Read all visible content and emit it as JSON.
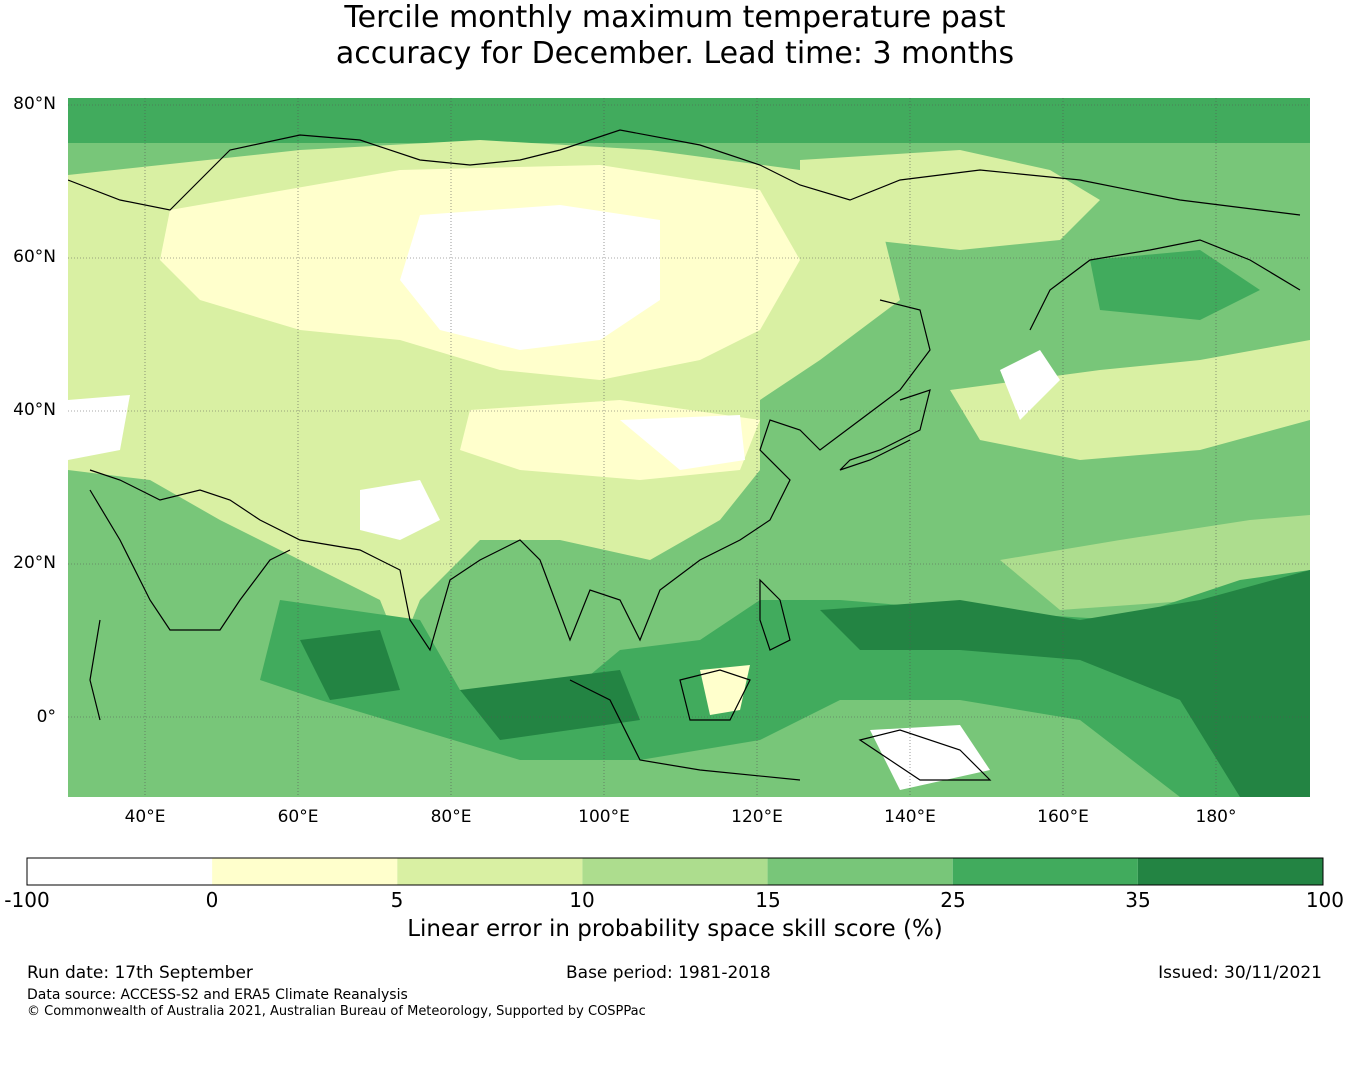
{
  "title": {
    "line1": "Tercile monthly maximum temperature past",
    "line2": "accuracy for December. Lead time: 3 months"
  },
  "map": {
    "lat_labels": [
      "80°N",
      "60°N",
      "40°N",
      "20°N",
      "0°"
    ],
    "lon_labels": [
      "40°E",
      "60°E",
      "80°E",
      "100°E",
      "120°E",
      "140°E",
      "160°E",
      "180°"
    ],
    "region": "Asia and western Pacific"
  },
  "colorbar": {
    "ticks": [
      "-100",
      "0",
      "5",
      "10",
      "15",
      "25",
      "35",
      "100"
    ],
    "colors": [
      "#ffffff",
      "#ffffcc",
      "#d9f0a3",
      "#addd8e",
      "#78c679",
      "#41ab5d",
      "#238443"
    ],
    "label": "Linear error in probability space skill score (%)"
  },
  "footer": {
    "run_date": "Run date: 17th September",
    "base_period": "Base period: 1981-2018",
    "issued": "Issued: 30/11/2021",
    "data_source": "Data source: ACCESS-S2 and ERA5 Climate Reanalysis",
    "copyright": "© Commonwealth of Australia 2021, Australian Bureau of Meteorology, Supported by COSPPac"
  }
}
